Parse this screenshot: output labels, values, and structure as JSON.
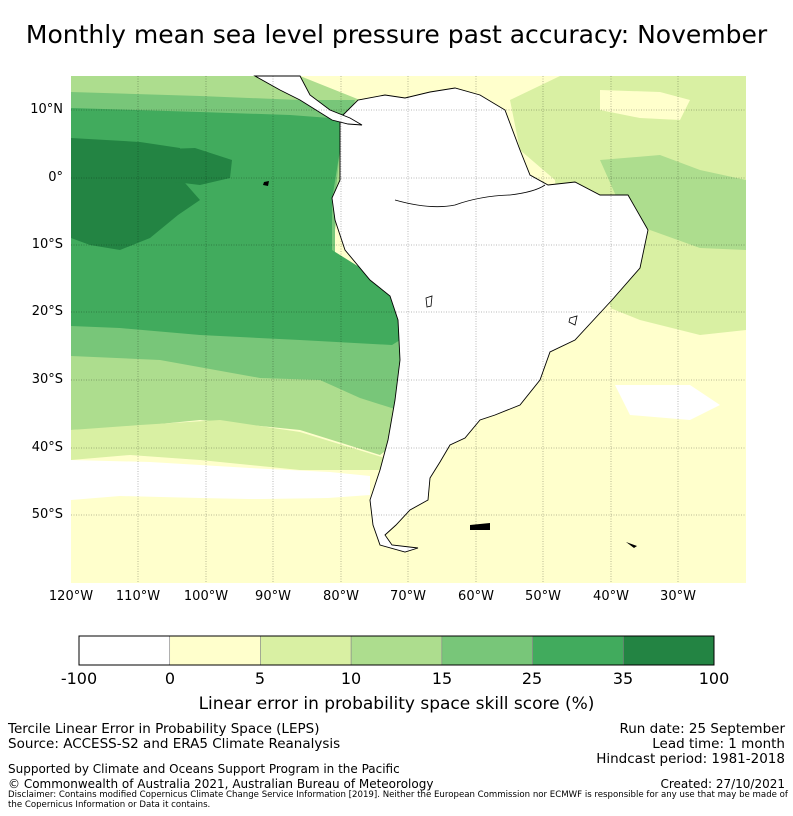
{
  "title": "Monthly mean sea level pressure past accuracy: November",
  "map": {
    "lat_labels": [
      "10°N",
      "0°",
      "10°S",
      "20°S",
      "30°S",
      "40°S",
      "50°S"
    ],
    "lon_labels": [
      "120°W",
      "110°W",
      "100°W",
      "90°W",
      "80°W",
      "70°W",
      "60°W",
      "50°W",
      "40°W",
      "30°W"
    ],
    "extent": {
      "lon": [
        -120,
        -20
      ],
      "lat": [
        -60,
        15
      ]
    }
  },
  "colorbar": {
    "ticks": [
      "-100",
      "0",
      "5",
      "10",
      "15",
      "25",
      "35",
      "100"
    ],
    "colors": [
      "#ffffff",
      "#ffffcc",
      "#d9f0a3",
      "#addd8e",
      "#78c679",
      "#41ab5d",
      "#238443"
    ],
    "label": "Linear error in probability space skill score (%)"
  },
  "footer": {
    "method": "Tercile Linear Error in Probability Space (LEPS)",
    "source": "Source: ACCESS-S2 and ERA5 Climate Reanalysis",
    "run_date": "Run date: 25 September",
    "lead_time": "Lead time: 1 month",
    "hindcast": "Hindcast period: 1981-2018",
    "support": "Supported by Climate and Oceans Support Program in the Pacific",
    "copyright": "© Commonwealth of Australia 2021, Australian Bureau of Meteorology",
    "created": "Created: 27/10/2021",
    "disclaimer": "Disclaimer: Contains modified Copernicus Climate Change Service Information [2019]. Neither the European Commission nor ECMWF is responsible for any use that may be made of the Copernicus Information or Data it contains."
  }
}
